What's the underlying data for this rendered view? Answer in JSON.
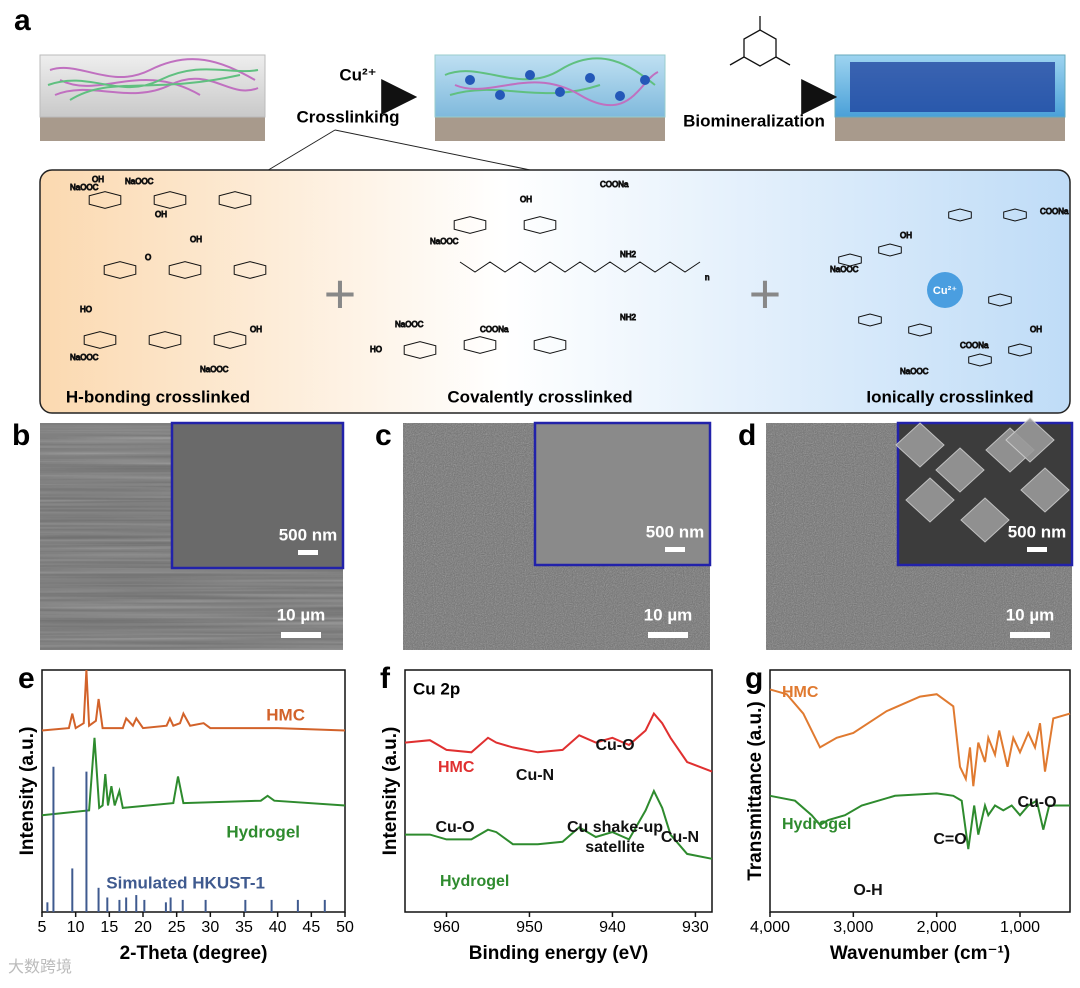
{
  "panel_labels": [
    "a",
    "b",
    "c",
    "d",
    "e",
    "f",
    "g"
  ],
  "panel_a": {
    "ion_label": "Cu²⁺",
    "step1": "Crosslinking",
    "step2": "Biomineralization",
    "structures": [
      "H-bonding crosslinked",
      "Covalently crosslinked",
      "Ionically crosslinked"
    ],
    "chem_labels": [
      "NaOOC",
      "OH",
      "HO",
      "COONa",
      "NH2",
      "n",
      "O"
    ]
  },
  "sem": [
    {
      "inset_scale": "500 nm",
      "scale": "10 µm"
    },
    {
      "inset_scale": "500 nm",
      "scale": "10 µm"
    },
    {
      "inset_scale": "500 nm",
      "scale": "10 µm"
    }
  ],
  "watermark": "大数跨境",
  "chart_data": [
    {
      "type": "line",
      "xlabel": "2-Theta (degree)",
      "ylabel": "Intensity (a.u.)",
      "xlim": [
        5,
        50
      ],
      "xticks": [
        5,
        10,
        15,
        20,
        25,
        30,
        35,
        40,
        45,
        50
      ],
      "ylim": [
        0,
        100
      ],
      "series": [
        {
          "name": "HMC",
          "color": "#d2622a",
          "x": [
            5,
            9,
            9.5,
            10,
            11.2,
            11.6,
            12,
            13,
            13.4,
            14,
            17,
            17.5,
            18.5,
            19,
            20,
            23.5,
            24,
            24.5,
            25.5,
            26,
            27,
            29,
            30,
            40,
            50
          ],
          "values": [
            75,
            76,
            82,
            76,
            78,
            100,
            77,
            79,
            88,
            76,
            76,
            80,
            77,
            80,
            76,
            77,
            80,
            77,
            78,
            82,
            77,
            78,
            76,
            76,
            75
          ]
        },
        {
          "name": "Hydrogel",
          "color": "#2e8b2e",
          "x": [
            5,
            12,
            12.8,
            13.5,
            14,
            14.4,
            14.8,
            15.3,
            15.8,
            16.5,
            17,
            24.5,
            25.2,
            26,
            37.5,
            38.5,
            39.5,
            50
          ],
          "values": [
            40,
            42,
            72,
            43,
            44,
            57,
            44,
            52,
            44,
            50,
            43,
            45,
            56,
            45,
            46,
            48,
            46,
            44
          ]
        },
        {
          "name": "Simulated HKUST-1",
          "color": "#3f5a8f",
          "marks": "stems",
          "x": [
            5.8,
            6.7,
            9.5,
            11.6,
            13.4,
            14.7,
            16.5,
            17.5,
            19.0,
            20.2,
            23.4,
            24.1,
            25.9,
            29.3,
            35.2,
            39.1,
            43.0,
            47.0
          ],
          "values": [
            4,
            60,
            18,
            58,
            10,
            6,
            5,
            6,
            7,
            5,
            4,
            6,
            5,
            5,
            5,
            5,
            5,
            5
          ]
        }
      ]
    },
    {
      "type": "line",
      "title": "Cu 2p",
      "xlabel": "Binding energy (eV)",
      "ylabel": "Intensity (a.u.)",
      "xlim": [
        965,
        928
      ],
      "xticks": [
        960,
        950,
        940,
        930
      ],
      "ylim": [
        0,
        100
      ],
      "annotations": [
        "Cu-N",
        "Cu-O",
        "HMC",
        "Cu-O",
        "Cu shake-up",
        "satellite",
        "Cu-N",
        "Hydrogel"
      ],
      "series": [
        {
          "name": "HMC",
          "color": "#e03030",
          "x": [
            965,
            962,
            960,
            957,
            955,
            954,
            952,
            949,
            946,
            944,
            942,
            940,
            938,
            936,
            935,
            934,
            933,
            931,
            928
          ],
          "values": [
            70,
            71,
            67,
            66,
            72,
            70,
            68,
            66,
            67,
            73,
            70,
            72,
            69,
            75,
            82,
            78,
            72,
            62,
            58
          ]
        },
        {
          "name": "Hydrogel",
          "color": "#2e8b2e",
          "x": [
            965,
            962,
            960,
            957,
            955,
            954,
            952,
            949,
            946,
            944,
            942,
            940,
            938,
            936,
            935,
            934,
            933,
            931,
            928
          ],
          "values": [
            32,
            32,
            30,
            30,
            34,
            33,
            28,
            28,
            29,
            35,
            31,
            33,
            30,
            42,
            50,
            43,
            32,
            24,
            22
          ]
        }
      ]
    },
    {
      "type": "line",
      "xlabel": "Wavenumber (cm⁻¹)",
      "ylabel": "Transmittance (a.u.)",
      "xlim": [
        4000,
        400
      ],
      "xticks": [
        {
          "value": 4000,
          "label": "4,000"
        },
        {
          "value": 3000,
          "label": "3,000"
        },
        {
          "value": 2000,
          "label": "2,000"
        },
        {
          "value": 1000,
          "label": "1,000"
        }
      ],
      "ylim": [
        0,
        100
      ],
      "annotations": [
        "HMC",
        "Hydrogel",
        "Cu-O",
        "C=O",
        "O-H"
      ],
      "series": [
        {
          "name": "HMC",
          "color": "#e07a30",
          "x": [
            4000,
            3800,
            3600,
            3400,
            3200,
            3000,
            2600,
            2200,
            2000,
            1800,
            1720,
            1650,
            1600,
            1560,
            1500,
            1420,
            1380,
            1300,
            1250,
            1150,
            1080,
            1000,
            900,
            820,
            760,
            700,
            600,
            400
          ],
          "values": [
            92,
            90,
            82,
            68,
            72,
            74,
            83,
            89,
            90,
            85,
            60,
            55,
            68,
            52,
            70,
            62,
            72,
            65,
            75,
            60,
            72,
            66,
            74,
            68,
            78,
            58,
            80,
            82
          ]
        },
        {
          "name": "Hydrogel",
          "color": "#2e8b2e",
          "x": [
            4000,
            3700,
            3500,
            3400,
            3300,
            3100,
            2900,
            2500,
            2000,
            1800,
            1700,
            1620,
            1550,
            1500,
            1420,
            1380,
            1300,
            1200,
            1100,
            1000,
            900,
            800,
            720,
            650,
            400
          ],
          "values": [
            48,
            46,
            40,
            36,
            38,
            40,
            44,
            48,
            49,
            48,
            46,
            26,
            44,
            32,
            44,
            40,
            44,
            42,
            44,
            40,
            44,
            46,
            34,
            44,
            44
          ]
        }
      ]
    }
  ]
}
